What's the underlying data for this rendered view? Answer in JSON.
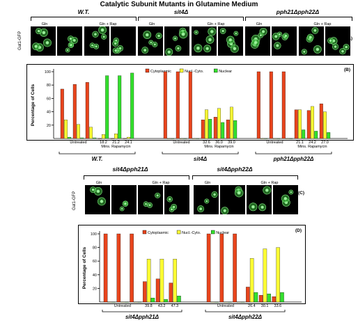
{
  "figure": {
    "title": "Catalytic Subunit Mutants in Glutamine Medium",
    "panel_letters": [
      "(A)",
      "(B)",
      "(C)",
      "(D)"
    ],
    "gfp_label": "Gat1-GFP",
    "cond_gln": "Gln",
    "cond_gln_rap": "Gln + Rap",
    "strains_top": [
      "W.T.",
      "sit4Δ",
      "pph21Δpph22Δ"
    ],
    "strains_bottom": [
      "sit4Δpph21Δ",
      "sit4Δpph22Δ"
    ]
  },
  "colors": {
    "cytoplasmic": "#e8441c",
    "nuclear_cyto": "#ffff33",
    "nuclear": "#33e02c"
  },
  "chart_data": [
    {
      "type": "bar",
      "panel": "(B)",
      "ylabel": "Percentage of Cells",
      "ylim": [
        0,
        100
      ],
      "yticks": [
        20,
        40,
        60,
        80,
        100
      ],
      "legend": [
        "Cytoplasmic",
        "Nucl.-Cyto.",
        "Nuclear"
      ],
      "groups": [
        {
          "strain": "W.T.",
          "untreated_label": "Untreated",
          "rap_label": "Mins. Rapamycin",
          "bars": [
            {
              "label": "",
              "values": [
                74,
                28,
                2
              ]
            },
            {
              "label": "",
              "values": [
                81,
                21,
                1
              ]
            },
            {
              "label": "",
              "values": [
                84,
                17,
                1
              ]
            },
            {
              "label": "18.2",
              "values": [
                0,
                6,
                94
              ]
            },
            {
              "label": "21.2",
              "values": [
                0,
                7,
                94
              ]
            },
            {
              "label": "24.1",
              "values": [
                0,
                2,
                98
              ]
            }
          ]
        },
        {
          "strain": "sit4Δ",
          "untreated_label": "Untreated",
          "rap_label": "Mins. Rapamycin",
          "bars": [
            {
              "label": "",
              "values": [
                100,
                0,
                0
              ]
            },
            {
              "label": "",
              "values": [
                100,
                0,
                0
              ]
            },
            {
              "label": "",
              "values": [
                100,
                0,
                0
              ]
            },
            {
              "label": "32.6",
              "values": [
                28,
                43,
                29
              ]
            },
            {
              "label": "36.0",
              "values": [
                32,
                45,
                24
              ]
            },
            {
              "label": "39.0",
              "values": [
                28,
                47,
                27
              ]
            }
          ]
        },
        {
          "strain": "pph21Δpph22Δ",
          "untreated_label": "Untreated",
          "rap_label": "Mins. Rapamycin",
          "bars": [
            {
              "label": "",
              "values": [
                100,
                0,
                0
              ]
            },
            {
              "label": "",
              "values": [
                100,
                0,
                0
              ]
            },
            {
              "label": "",
              "values": [
                100,
                0,
                0
              ]
            },
            {
              "label": "21.1",
              "values": [
                43,
                43,
                13
              ]
            },
            {
              "label": "24.2",
              "values": [
                42,
                48,
                11
              ]
            },
            {
              "label": "27.0",
              "values": [
                52,
                40,
                9
              ]
            }
          ]
        }
      ]
    },
    {
      "type": "bar",
      "panel": "(D)",
      "ylabel": "Percentage of Cells",
      "ylim": [
        0,
        100
      ],
      "yticks": [
        20,
        40,
        60,
        80,
        100
      ],
      "legend": [
        "Cytoplasmic",
        "Nucl.-Cyto.",
        "Nuclear"
      ],
      "groups": [
        {
          "strain": "sit4Δpph21Δ",
          "untreated_label": "Untreated",
          "rap_label": "",
          "bars": [
            {
              "label": "",
              "values": [
                100,
                0,
                0
              ]
            },
            {
              "label": "",
              "values": [
                100,
                0,
                0
              ]
            },
            {
              "label": "",
              "values": [
                100,
                0,
                0
              ]
            },
            {
              "label": "39.8",
              "values": [
                30,
                63,
                6
              ]
            },
            {
              "label": "43.2",
              "values": [
                34,
                63,
                4
              ]
            },
            {
              "label": "47.3",
              "values": [
                28,
                63,
                9
              ]
            }
          ]
        },
        {
          "strain": "sit4Δpph22Δ",
          "untreated_label": "Untreated",
          "rap_label": "",
          "bars": [
            {
              "label": "",
              "values": [
                100,
                0,
                0
              ]
            },
            {
              "label": "",
              "values": [
                100,
                0,
                0
              ]
            },
            {
              "label": "",
              "values": [
                100,
                0,
                0
              ]
            },
            {
              "label": "26.4",
              "values": [
                22,
                64,
                14
              ]
            },
            {
              "label": "30.1",
              "values": [
                10,
                78,
                12
              ]
            },
            {
              "label": "33.6",
              "values": [
                8,
                80,
                14
              ]
            }
          ]
        }
      ]
    }
  ]
}
